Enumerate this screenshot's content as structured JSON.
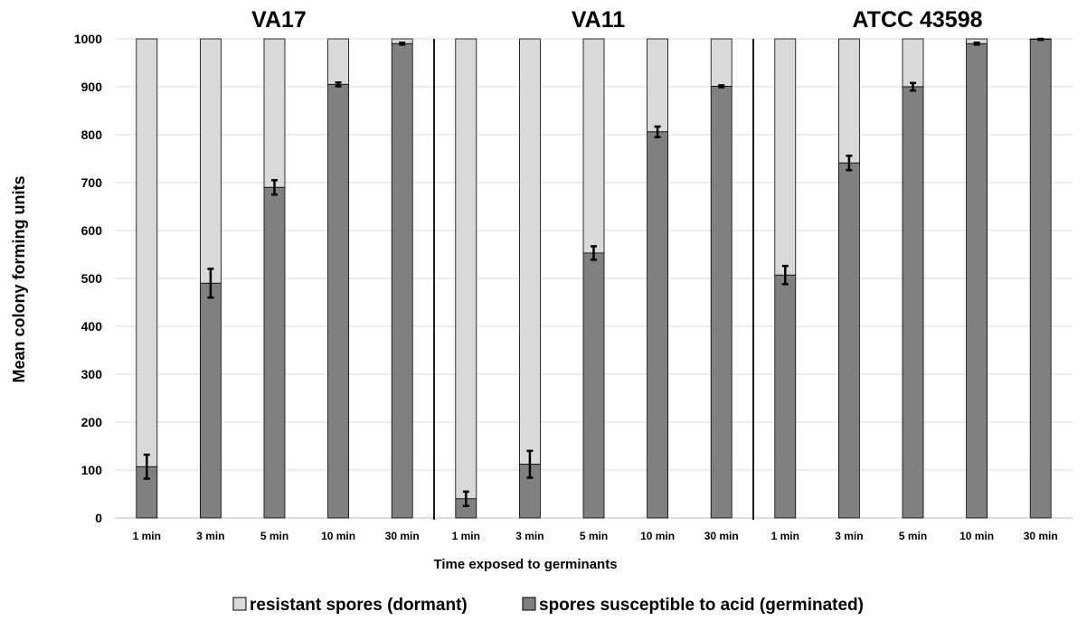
{
  "chart_data": {
    "type": "bar",
    "stacked": true,
    "ylabel": "Mean colony forming units",
    "xlabel": "Time exposed to germinants",
    "ylim": [
      0,
      1000
    ],
    "yticks": [
      0,
      100,
      200,
      300,
      400,
      500,
      600,
      700,
      800,
      900,
      1000
    ],
    "grid": true,
    "legend_position": "bottom",
    "legend": [
      {
        "label": "resistant spores (dormant)",
        "color": "#d9d9d9"
      },
      {
        "label": "spores susceptible to acid (germinated)",
        "color": "#808080"
      }
    ],
    "panels": [
      {
        "title": "VA17",
        "categories": [
          "1 min",
          "3 min",
          "5 min",
          "10 min",
          "30 min"
        ],
        "germinated": [
          107,
          490,
          690,
          905,
          990
        ],
        "error": [
          25,
          30,
          15,
          4,
          2
        ]
      },
      {
        "title": "VA11",
        "categories": [
          "1 min",
          "3 min",
          "5 min",
          "10 min",
          "30 min"
        ],
        "germinated": [
          40,
          112,
          553,
          806,
          901
        ],
        "error": [
          15,
          28,
          14,
          11,
          2
        ]
      },
      {
        "title": "ATCC 43598",
        "categories": [
          "1 min",
          "3 min",
          "5 min",
          "10 min",
          "30 min"
        ],
        "germinated": [
          507,
          741,
          900,
          990,
          999
        ],
        "error": [
          19,
          15,
          8,
          2,
          1
        ]
      }
    ],
    "total": 1000
  }
}
